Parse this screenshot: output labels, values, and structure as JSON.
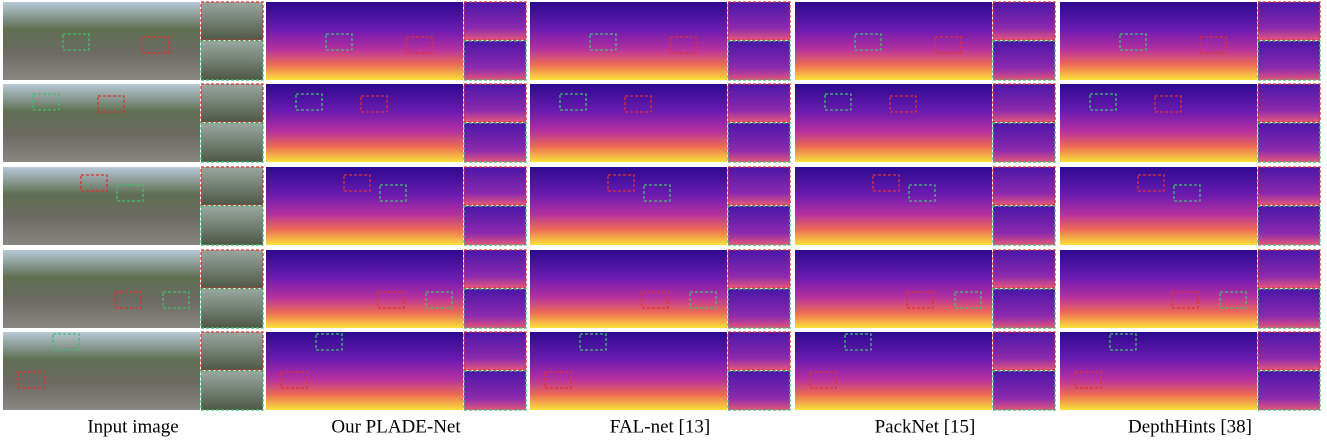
{
  "captions": [
    "Input image",
    "Our PLADE-Net",
    "FAL-net [13]",
    "PackNet [15]",
    "DepthHints [38]"
  ]
}
